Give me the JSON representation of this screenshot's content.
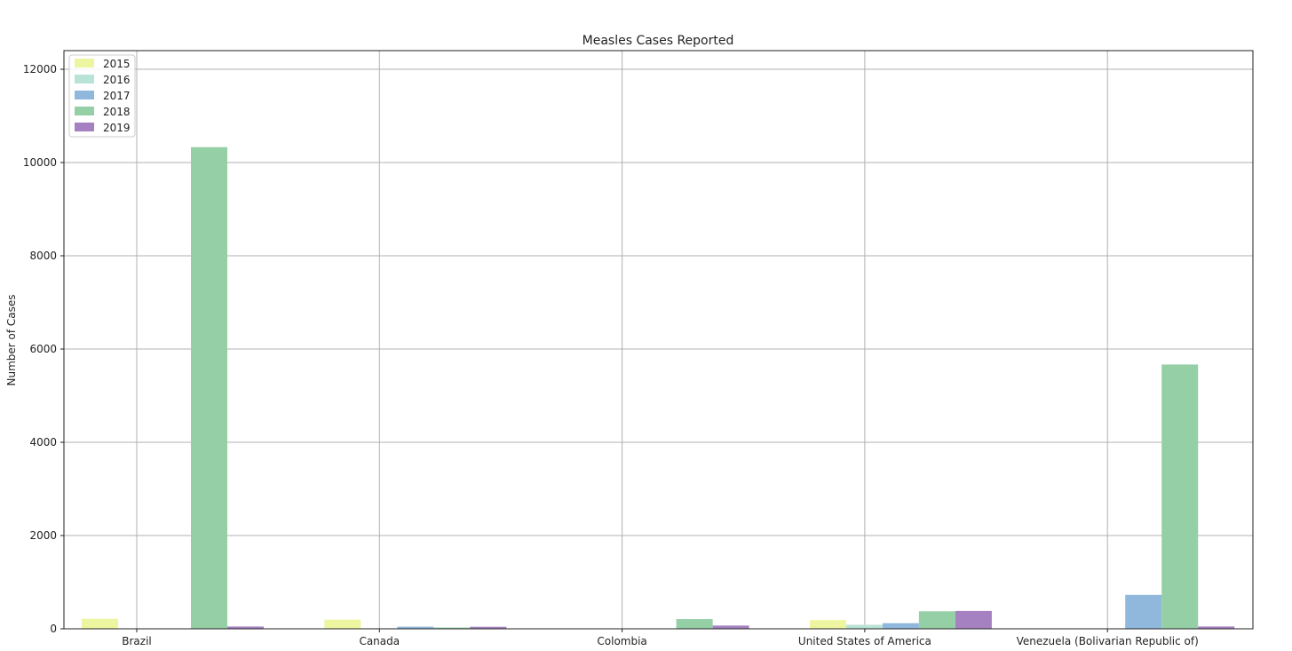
{
  "chart_data": {
    "type": "bar",
    "title": "Measles Cases Reported",
    "xlabel": "",
    "ylabel": "Number of Cases",
    "categories": [
      "Brazil",
      "Canada",
      "Colombia",
      "United States of America",
      "Venezuela (Bolivarian Republic of)"
    ],
    "series": [
      {
        "name": "2015",
        "color": "#eef5a0",
        "values": [
          214,
          196,
          0,
          188,
          0
        ]
      },
      {
        "name": "2016",
        "color": "#b9e3d7",
        "values": [
          0,
          11,
          0,
          86,
          0
        ]
      },
      {
        "name": "2017",
        "color": "#8fb8dc",
        "values": [
          0,
          46,
          0,
          120,
          727
        ]
      },
      {
        "name": "2018",
        "color": "#94cfa6",
        "values": [
          10330,
          28,
          208,
          375,
          5668
        ]
      },
      {
        "name": "2019",
        "color": "#a681c2",
        "values": [
          49,
          44,
          70,
          383,
          50
        ]
      }
    ],
    "ylim": [
      0,
      12400
    ],
    "yticks": [
      "0",
      "2000",
      "4000",
      "6000",
      "8000",
      "10000",
      "12000"
    ],
    "grid": true,
    "legend_position": "top-left"
  }
}
